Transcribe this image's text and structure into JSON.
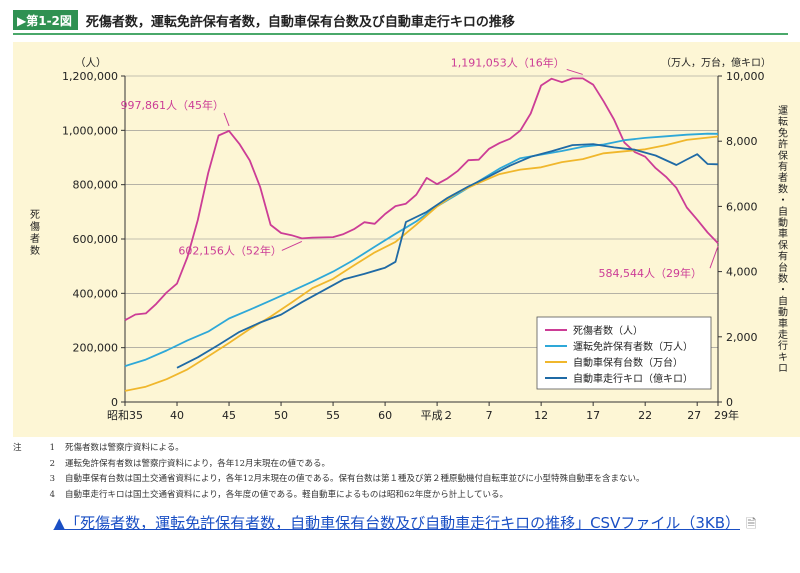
{
  "figure": {
    "badge": "▶第1-2図",
    "title": "死傷者数，運転免許保有者数，自動車保有台数及び自動車走行キロの推移"
  },
  "notes": {
    "label": "注",
    "items": [
      {
        "num": "1",
        "text": "死傷者数は警察庁資料による。"
      },
      {
        "num": "2",
        "text": "運転免許保有者数は警察庁資料により，各年12月末現在の値である。"
      },
      {
        "num": "3",
        "text": "自動車保有台数は国土交通省資料により，各年12月末現在の値である。保有台数は第１種及び第２種原動機付自転車並びに小型特殊自動車を含まない。"
      },
      {
        "num": "4",
        "text": "自動車走行キロは国土交通省資料により，各年度の値である。軽自動車によるものは昭和62年度から計上している。"
      }
    ]
  },
  "link": {
    "text": "▲「死傷者数，運転免許保有者数，自動車保有台数及び自動車走行キロの推移」CSVファイル（3KB）",
    "icon": "document-icon"
  },
  "chart_data": {
    "type": "line",
    "title": "死傷者数，運転免許保有者数，自動車保有台数及び自動車走行キロの推移",
    "left_axis_unit": "（人）",
    "right_axis_unit": "（万人，万台，億キロ）",
    "ylabel_left": "死傷者数",
    "ylabel_right": "運転免許保有者数・自動車保有台数・自動車走行キロ",
    "ylim_left": [
      0,
      1200000
    ],
    "ylim_right": [
      0,
      10000
    ],
    "left_ticks": [
      "0",
      "200,000",
      "400,000",
      "600,000",
      "800,000",
      "1,000,000",
      "1,200,000"
    ],
    "right_ticks": [
      "0",
      "2,000",
      "4,000",
      "6,000",
      "8,000",
      "10,000"
    ],
    "x_range": [
      1960,
      2017
    ],
    "x_ticks": [
      {
        "x": 1960,
        "label": "昭和35"
      },
      {
        "x": 1965,
        "label": "40"
      },
      {
        "x": 1970,
        "label": "45"
      },
      {
        "x": 1975,
        "label": "50"
      },
      {
        "x": 1980,
        "label": "55"
      },
      {
        "x": 1985,
        "label": "60"
      },
      {
        "x": 1990,
        "label": "平成２"
      },
      {
        "x": 1995,
        "label": "7"
      },
      {
        "x": 2000,
        "label": "12"
      },
      {
        "x": 2005,
        "label": "17"
      },
      {
        "x": 2010,
        "label": "22"
      },
      {
        "x": 2015,
        "label": "27"
      },
      {
        "x": 2017,
        "label": "29年"
      }
    ],
    "legend_position": "bottom-right",
    "series": [
      {
        "name": "死傷者数（人）",
        "axis": "left",
        "color": "#cc3d96",
        "x": [
          1960,
          1961,
          1962,
          1963,
          1964,
          1965,
          1966,
          1967,
          1968,
          1969,
          1970,
          1971,
          1972,
          1973,
          1974,
          1975,
          1976,
          1977,
          1978,
          1979,
          1980,
          1981,
          1982,
          1983,
          1984,
          1985,
          1986,
          1987,
          1988,
          1989,
          1990,
          1991,
          1992,
          1993,
          1994,
          1995,
          1996,
          1997,
          1998,
          1999,
          2000,
          2001,
          2002,
          2003,
          2004,
          2005,
          2006,
          2007,
          2008,
          2009,
          2010,
          2011,
          2012,
          2013,
          2014,
          2015,
          2016,
          2017
        ],
        "values": [
          301000,
          322000,
          326000,
          361000,
          403000,
          436000,
          533000,
          670000,
          843000,
          981000,
          997861,
          950000,
          889000,
          791000,
          652000,
          622000,
          614000,
          602156,
          605000,
          606000,
          607000,
          618000,
          636000,
          662000,
          656000,
          692000,
          721000,
          730000,
          763000,
          825000,
          802000,
          823000,
          851000,
          890000,
          892000,
          932000,
          953000,
          969000,
          999000,
          1062000,
          1165000,
          1190000,
          1177000,
          1191053,
          1191053,
          1168000,
          1107000,
          1040000,
          955000,
          920000,
          903000,
          861000,
          829000,
          788000,
          716000,
          671000,
          624000,
          584544
        ]
      },
      {
        "name": "運転免許保有者数（万人）",
        "axis": "right",
        "color": "#2ea8d8",
        "x": [
          1960,
          1962,
          1964,
          1966,
          1968,
          1970,
          1972,
          1974,
          1976,
          1978,
          1980,
          1982,
          1984,
          1986,
          1988,
          1990,
          1992,
          1994,
          1996,
          1998,
          2000,
          2002,
          2004,
          2006,
          2008,
          2010,
          2012,
          2014,
          2016,
          2017
        ],
        "values": [
          1100,
          1300,
          1580,
          1890,
          2160,
          2560,
          2830,
          3110,
          3400,
          3690,
          4000,
          4360,
          4760,
          5160,
          5540,
          6000,
          6380,
          6770,
          7160,
          7480,
          7590,
          7700,
          7830,
          7900,
          8030,
          8100,
          8150,
          8200,
          8230,
          8226
        ]
      },
      {
        "name": "自動車保有台数（万台）",
        "axis": "right",
        "color": "#f0b72c",
        "x": [
          1960,
          1962,
          1964,
          1966,
          1968,
          1970,
          1972,
          1974,
          1976,
          1978,
          1980,
          1982,
          1984,
          1986,
          1988,
          1990,
          1992,
          1994,
          1996,
          1998,
          2000,
          2002,
          2004,
          2006,
          2008,
          2010,
          2012,
          2014,
          2016,
          2017
        ],
        "values": [
          340,
          470,
          700,
          1000,
          1400,
          1810,
          2240,
          2620,
          3050,
          3490,
          3780,
          4190,
          4590,
          4910,
          5440,
          6000,
          6430,
          6720,
          6990,
          7130,
          7200,
          7360,
          7450,
          7630,
          7690,
          7750,
          7880,
          8040,
          8110,
          8145
        ]
      },
      {
        "name": "自動車走行キロ（億キロ）",
        "axis": "right",
        "color": "#1f6aa5",
        "x": [
          1965,
          1967,
          1969,
          1971,
          1973,
          1975,
          1977,
          1979,
          1981,
          1983,
          1985,
          1986,
          1987,
          1989,
          1991,
          1993,
          1995,
          1997,
          1999,
          2001,
          2003,
          2005,
          2007,
          2009,
          2011,
          2013,
          2014,
          2015,
          2016,
          2017
        ],
        "values": [
          1050,
          1370,
          1750,
          2150,
          2440,
          2680,
          3060,
          3410,
          3760,
          3930,
          4120,
          4300,
          5520,
          5830,
          6260,
          6610,
          6920,
          7250,
          7520,
          7690,
          7880,
          7910,
          7810,
          7740,
          7560,
          7270,
          7440,
          7600,
          7300,
          7290
        ]
      }
    ],
    "annotations": [
      {
        "text": "997,861人（45年）",
        "x": 1970,
        "value": 997861
      },
      {
        "text": "602,156人（52年）",
        "x": 1977,
        "value": 602156
      },
      {
        "text": "1,191,053人（16年）",
        "x": 2004,
        "value": 1191053
      },
      {
        "text": "584,544人（29年）",
        "x": 2017,
        "value": 584544
      }
    ]
  }
}
